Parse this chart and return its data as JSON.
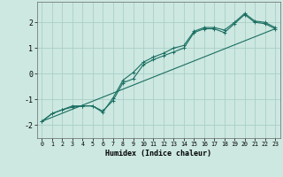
{
  "xlabel": "Humidex (Indice chaleur)",
  "ylabel": "",
  "xlim": [
    -0.5,
    23.5
  ],
  "ylim": [
    -2.5,
    2.8
  ],
  "x_ticks": [
    0,
    1,
    2,
    3,
    4,
    5,
    6,
    7,
    8,
    9,
    10,
    11,
    12,
    13,
    14,
    15,
    16,
    17,
    18,
    19,
    20,
    21,
    22,
    23
  ],
  "y_ticks": [
    -2,
    -1,
    0,
    1,
    2
  ],
  "bg_color": "#cce8e0",
  "grid_color": "#aacfc8",
  "line_color": "#1a6e62",
  "line1_x": [
    0,
    1,
    2,
    3,
    4,
    5,
    6,
    7,
    8,
    9,
    10,
    11,
    12,
    13,
    14,
    15,
    16,
    17,
    18,
    19,
    20,
    21,
    22,
    23
  ],
  "line1_y": [
    -1.85,
    -1.55,
    -1.4,
    -1.3,
    -1.25,
    -1.25,
    -1.45,
    -1.05,
    -0.35,
    -0.2,
    0.35,
    0.55,
    0.7,
    0.85,
    1.0,
    1.6,
    1.75,
    1.75,
    1.6,
    1.95,
    2.3,
    2.0,
    1.95,
    1.75
  ],
  "line2_x": [
    0,
    1,
    2,
    3,
    4,
    5,
    6,
    7,
    8,
    9,
    10,
    11,
    12,
    13,
    14,
    15,
    16,
    17,
    18,
    19,
    20,
    21,
    22,
    23
  ],
  "line2_y": [
    -1.85,
    -1.55,
    -1.4,
    -1.25,
    -1.25,
    -1.25,
    -1.5,
    -0.95,
    -0.25,
    0.05,
    0.45,
    0.65,
    0.8,
    1.0,
    1.1,
    1.65,
    1.8,
    1.8,
    1.7,
    2.0,
    2.35,
    2.05,
    2.0,
    1.8
  ],
  "line3_x": [
    0,
    23
  ],
  "line3_y": [
    -1.85,
    1.75
  ],
  "xlabel_fontsize": 6.0,
  "xtick_fontsize": 4.8,
  "ytick_fontsize": 6.0
}
